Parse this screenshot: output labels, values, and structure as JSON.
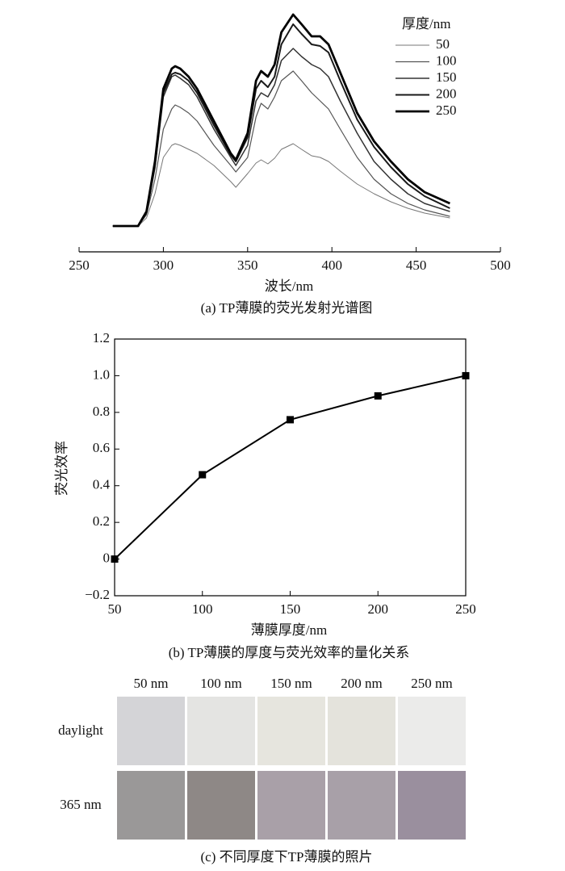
{
  "chart_data": [
    {
      "type": "line",
      "caption": "(a) TP薄膜的荧光发射光谱图",
      "xlabel": "波长/nm",
      "legend_title": "厚度/nm",
      "legend": "upper right",
      "x": [
        270,
        285,
        290,
        295,
        300,
        305,
        307,
        310,
        315,
        320,
        330,
        340,
        343,
        350,
        355,
        358,
        362,
        366,
        370,
        377,
        382,
        388,
        393,
        398,
        405,
        415,
        425,
        435,
        445,
        455,
        470
      ],
      "series": [
        {
          "name": "50",
          "color": "#777777",
          "width": 1,
          "values": [
            32,
            32,
            42,
            72,
            117,
            132,
            134,
            132,
            127,
            122,
            107,
            87,
            80,
            97,
            110,
            114,
            109,
            116,
            127,
            134,
            127,
            119,
            117,
            112,
            100,
            84,
            72,
            62,
            54,
            48,
            42
          ]
        },
        {
          "name": "100",
          "color": "#555555",
          "width": 1.2,
          "values": [
            32,
            32,
            46,
            90,
            152,
            177,
            182,
            179,
            172,
            162,
            132,
            107,
            99,
            117,
            167,
            184,
            177,
            192,
            212,
            224,
            212,
            197,
            187,
            177,
            152,
            117,
            90,
            72,
            60,
            52,
            44
          ]
        },
        {
          "name": "150",
          "color": "#333333",
          "width": 1.5,
          "values": [
            32,
            32,
            48,
            104,
            192,
            217,
            219,
            215,
            207,
            192,
            152,
            117,
            107,
            132,
            187,
            197,
            192,
            207,
            237,
            252,
            242,
            232,
            227,
            217,
            187,
            147,
            112,
            90,
            72,
            60,
            50
          ]
        },
        {
          "name": "200",
          "color": "#1a1a1a",
          "width": 2,
          "values": [
            32,
            32,
            49,
            107,
            197,
            220,
            222,
            220,
            212,
            197,
            157,
            120,
            112,
            142,
            202,
            212,
            204,
            217,
            257,
            282,
            270,
            257,
            255,
            247,
            212,
            164,
            130,
            105,
            84,
            69,
            54
          ]
        },
        {
          "name": "250",
          "color": "#000000",
          "width": 2.8,
          "values": [
            32,
            32,
            50,
            112,
            202,
            227,
            230,
            227,
            217,
            202,
            162,
            122,
            114,
            147,
            212,
            224,
            217,
            232,
            272,
            294,
            282,
            267,
            267,
            257,
            222,
            172,
            137,
            112,
            90,
            74,
            60
          ]
        }
      ],
      "xlim": [
        250,
        500
      ],
      "xticks": [
        250,
        300,
        350,
        400,
        450,
        500
      ],
      "ylim": [
        0,
        300
      ]
    },
    {
      "type": "line",
      "caption": "(b) TP薄膜的厚度与荧光效率的量化关系",
      "xlabel": "薄膜厚度/nm",
      "ylabel": "荧光效率",
      "x": [
        50,
        100,
        150,
        200,
        250
      ],
      "values": [
        0,
        0.46,
        0.76,
        0.89,
        1.0
      ],
      "color": "#000000",
      "marker": "square",
      "xlim": [
        50,
        250
      ],
      "xticks": [
        50,
        100,
        150,
        200,
        250
      ],
      "ylim": [
        -0.2,
        1.2
      ],
      "yticks": [
        {
          "value": -0.2,
          "label": "−0.2"
        },
        0,
        0.2,
        0.4,
        0.6,
        0.8,
        {
          "value": 1.0,
          "label": "1.0"
        },
        1.2
      ]
    }
  ],
  "photos": {
    "columns": [
      "50 nm",
      "100 nm",
      "150 nm",
      "200 nm",
      "250 nm"
    ],
    "rows": [
      "daylight",
      "365 nm"
    ],
    "caption": "(c) 不同厚度下TP薄膜的照片"
  }
}
